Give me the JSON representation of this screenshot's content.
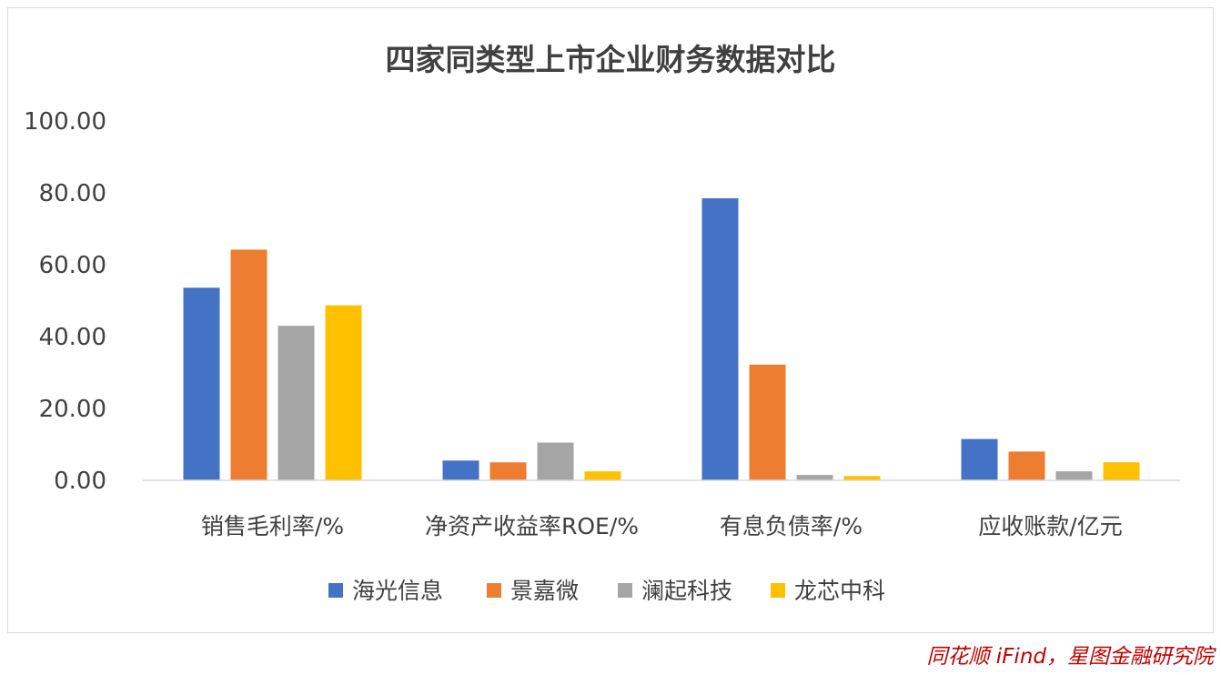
{
  "chart_data": {
    "type": "bar",
    "title": "四家同类型上市企业财务数据对比",
    "categories": [
      "销售毛利率/%",
      "净资产收益率ROE/%",
      "有息负债率/%",
      "应收账款/亿元"
    ],
    "series": [
      {
        "name": "海光信息",
        "color": "#4472c4",
        "values": [
          53.6,
          5.5,
          78.5,
          11.5
        ]
      },
      {
        "name": "景嘉微",
        "color": "#ed7d31",
        "values": [
          64.2,
          5.0,
          32.2,
          8.0
        ]
      },
      {
        "name": "澜起科技",
        "color": "#a5a5a5",
        "values": [
          43.0,
          10.5,
          1.5,
          2.5
        ]
      },
      {
        "name": "龙芯中科",
        "color": "#ffc000",
        "values": [
          48.7,
          2.5,
          1.2,
          5.0
        ]
      }
    ],
    "ylim": [
      0,
      100
    ],
    "yticks": [
      "0.00",
      "20.00",
      "40.00",
      "60.00",
      "80.00",
      "100.00"
    ],
    "ytick_values": [
      0,
      20,
      40,
      60,
      80,
      100
    ],
    "xlabel": "",
    "ylabel": "",
    "grid": false,
    "legend_position": "bottom"
  },
  "watermark": "同花顺 iFind，星图金融研究院"
}
